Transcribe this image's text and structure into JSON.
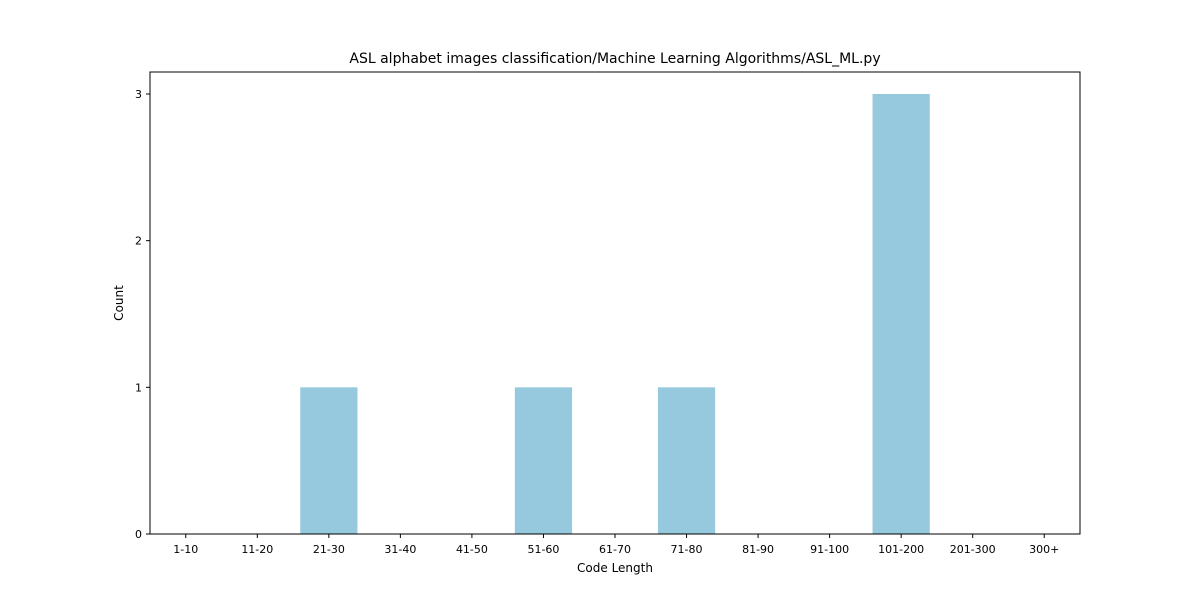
{
  "chart_data": {
    "type": "bar",
    "title": "ASL alphabet images classification/Machine Learning Algorithms/ASL_ML.py",
    "xlabel": "Code Length",
    "ylabel": "Count",
    "categories": [
      "1-10",
      "11-20",
      "21-30",
      "31-40",
      "41-50",
      "51-60",
      "61-70",
      "71-80",
      "81-90",
      "91-100",
      "101-200",
      "201-300",
      "300+"
    ],
    "values": [
      0,
      0,
      1,
      0,
      0,
      1,
      0,
      1,
      0,
      0,
      3,
      0,
      0
    ],
    "yticks": [
      0,
      1,
      2,
      3
    ],
    "ylim": [
      0,
      3.15
    ],
    "grid": false,
    "bar_color": "#96c9dd"
  }
}
